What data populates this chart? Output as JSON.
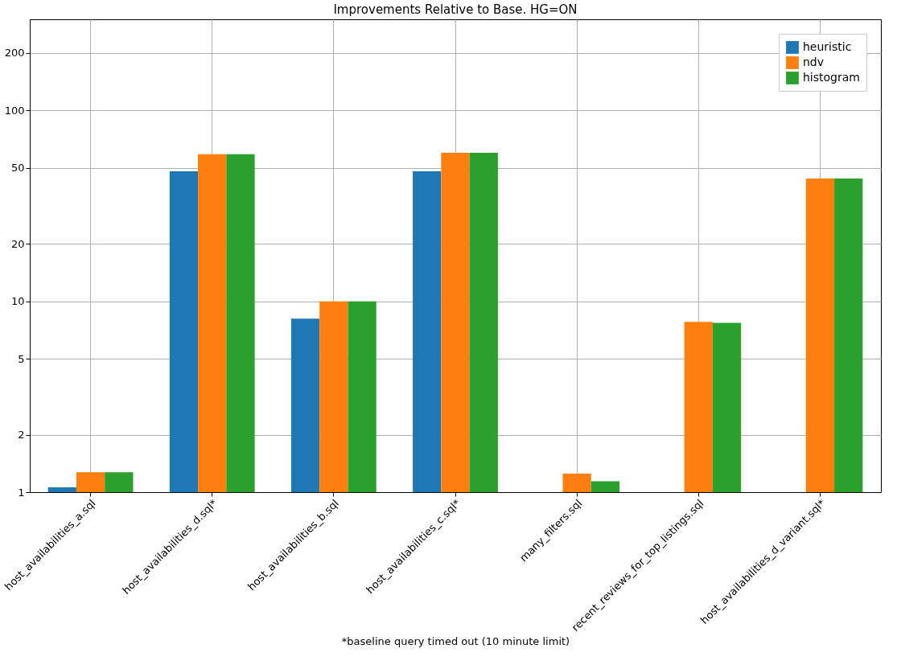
{
  "chart_data": {
    "type": "bar",
    "title": "Improvements Relative to Base. HG=ON",
    "xlabel": "*baseline query timed out (10 minute limit)",
    "categories": [
      "host_availabilities_a.sql",
      "host_availabilities_d.sql*",
      "host_availabilities_b.sql",
      "host_availabilities_c.sql*",
      "many_filters.sql",
      "recent_reviews_for_top_listings.sql",
      "host_availabilities_d_variant.sql*"
    ],
    "series": [
      {
        "name": "heuristic",
        "color": "#1f77b4",
        "values": [
          1.06,
          48,
          8.1,
          48,
          null,
          null,
          null
        ]
      },
      {
        "name": "ndv",
        "color": "#ff7f0e",
        "values": [
          1.27,
          59,
          10,
          60,
          1.25,
          7.8,
          44
        ]
      },
      {
        "name": "histogram",
        "color": "#2ca02c",
        "values": [
          1.27,
          59,
          10,
          60,
          1.14,
          7.7,
          44
        ]
      }
    ],
    "log": true,
    "ylim": [
      1,
      300
    ],
    "yticks": [
      1,
      2,
      5,
      10,
      20,
      50,
      100,
      200
    ],
    "grid": true,
    "legend": "top right"
  }
}
